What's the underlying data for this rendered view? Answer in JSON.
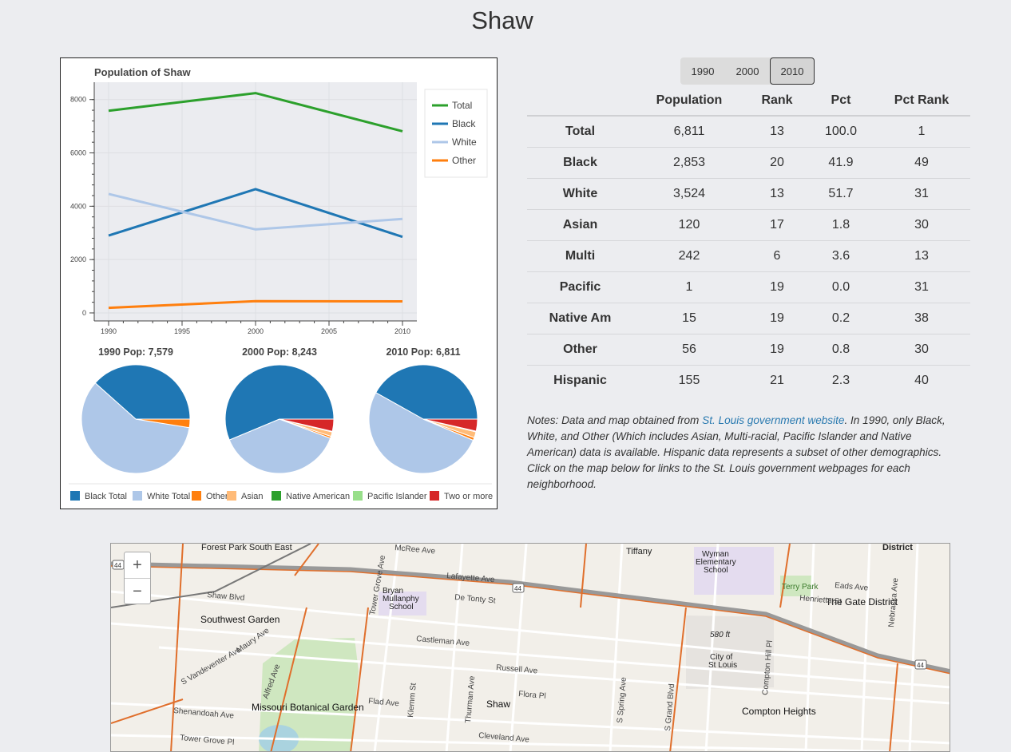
{
  "page": {
    "title": "Shaw"
  },
  "year_buttons": [
    {
      "label": "1990",
      "active": false
    },
    {
      "label": "2000",
      "active": false
    },
    {
      "label": "2010",
      "active": true
    }
  ],
  "table": {
    "headers": [
      "",
      "Population",
      "Rank",
      "Pct",
      "Pct Rank"
    ],
    "rows": [
      {
        "label": "Total",
        "population": "6,811",
        "rank": "13",
        "pct": "100.0",
        "pct_rank": "1"
      },
      {
        "label": "Black",
        "population": "2,853",
        "rank": "20",
        "pct": "41.9",
        "pct_rank": "49"
      },
      {
        "label": "White",
        "population": "3,524",
        "rank": "13",
        "pct": "51.7",
        "pct_rank": "31"
      },
      {
        "label": "Asian",
        "population": "120",
        "rank": "17",
        "pct": "1.8",
        "pct_rank": "30"
      },
      {
        "label": "Multi",
        "population": "242",
        "rank": "6",
        "pct": "3.6",
        "pct_rank": "13"
      },
      {
        "label": "Pacific",
        "population": "1",
        "rank": "19",
        "pct": "0.0",
        "pct_rank": "31"
      },
      {
        "label": "Native Am",
        "population": "15",
        "rank": "19",
        "pct": "0.2",
        "pct_rank": "38"
      },
      {
        "label": "Other",
        "population": "56",
        "rank": "19",
        "pct": "0.8",
        "pct_rank": "30"
      },
      {
        "label": "Hispanic",
        "population": "155",
        "rank": "21",
        "pct": "2.3",
        "pct_rank": "40"
      }
    ]
  },
  "notes": {
    "before_link": "Notes: Data and map obtained from ",
    "link_text": "St. Louis government website",
    "after_link": ". In 1990, only Black, White, and Other (Which includes Asian, Multi-racial, Pacific Islander and Native American) data is available. Hispanic data represents a subset of other demographics. Click on the map below for links to the St. Louis government webpages for each neighborhood."
  },
  "chart_data": [
    {
      "type": "line",
      "title": "Population of Shaw",
      "x": [
        1990,
        2000,
        2010
      ],
      "xticks": [
        "1990",
        "1995",
        "2000",
        "2005",
        "2010"
      ],
      "yticks": [
        "0",
        "2000",
        "4000",
        "6000",
        "8000"
      ],
      "xlim": [
        1990,
        2010
      ],
      "ylim": [
        -300,
        8650
      ],
      "legend_position": "top-right",
      "series": [
        {
          "name": "Total",
          "color": "#2ca02c",
          "values": [
            7579,
            8243,
            6811
          ]
        },
        {
          "name": "Black",
          "color": "#1f77b4",
          "values": [
            2900,
            4640,
            2853
          ]
        },
        {
          "name": "White",
          "color": "#aec7e8",
          "values": [
            4460,
            3130,
            3524
          ]
        },
        {
          "name": "Other",
          "color": "#ff7f0e",
          "values": [
            190,
            440,
            434
          ]
        }
      ]
    },
    {
      "type": "pie",
      "pies": [
        {
          "title": "1990 Pop: 7,579",
          "values": [
            2900,
            4460,
            190,
            0,
            0,
            0,
            0
          ]
        },
        {
          "title": "2000 Pop: 8,243",
          "values": [
            4640,
            3130,
            48,
            110,
            15,
            2,
            298
          ]
        },
        {
          "title": "2010 Pop: 6,811",
          "values": [
            2853,
            3524,
            56,
            120,
            15,
            1,
            242
          ]
        }
      ],
      "legend": [
        {
          "name": "Black Total",
          "color": "#1f77b4"
        },
        {
          "name": "White Total",
          "color": "#aec7e8"
        },
        {
          "name": "Other",
          "color": "#ff7f0e"
        },
        {
          "name": "Asian",
          "color": "#ffbb78"
        },
        {
          "name": "Native American",
          "color": "#2ca02c"
        },
        {
          "name": "Pacific Islander",
          "color": "#98df8a"
        },
        {
          "name": "Two or more",
          "color": "#d62728"
        }
      ]
    }
  ],
  "map": {
    "zoom_in": "+",
    "zoom_out": "−",
    "places": [
      "Forest Park South East",
      "Tiffany",
      "Wyman Elementary School",
      "District",
      "Bryan Mullanphy School",
      "Terry Park",
      "The Gate District",
      "Southwest Garden",
      "City of St Louis",
      "Missouri Botanical Garden",
      "Shaw",
      "Compton Heights",
      "580 ft"
    ],
    "streets": [
      "Shaw Blvd",
      "Lafayette Ave",
      "De Tonty St",
      "Castleman Ave",
      "Russell Ave",
      "S Vandeventer Ave",
      "Maury Ave",
      "Shenandoah Ave",
      "Tower Grove Pl",
      "Flora Pl",
      "Cleveland Ave",
      "Eads Ave",
      "Henrietta St",
      "Tower Grove Ave",
      "Klemm St",
      "Thurman Ave",
      "S Spring Ave",
      "S Grand Blvd",
      "Compton Hill Pl",
      "Nebraska Ave",
      "Alfred Ave",
      "Flad Ave",
      "McRee Ave",
      "44"
    ]
  }
}
